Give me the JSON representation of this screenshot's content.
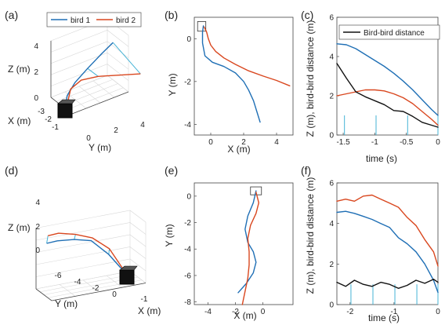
{
  "colors": {
    "bird1": "#1f6fb5",
    "bird2": "#d9471f",
    "distance": "#111111",
    "link": "#45b3d6",
    "grid": "#d8d8d8",
    "axis": "#444444"
  },
  "panels": {
    "a": {
      "label": "(a)",
      "legend": [
        "bird 1",
        "bird 2"
      ],
      "zlabel": "Z (m)",
      "xlabel": "X (m)",
      "ylabel": "Y (m)",
      "zticks": [
        "0",
        "2",
        "4"
      ],
      "xticks": [
        "-3",
        "-2",
        "-1"
      ],
      "yticks": [
        "0",
        "2",
        "4"
      ]
    },
    "b": {
      "label": "(b)",
      "xlabel": "X (m)",
      "ylabel": "Y (m)"
    },
    "c": {
      "label": "(c)",
      "legend": [
        "Bird-bird distance"
      ],
      "xlabel": "time (s)",
      "ylabel": "Z (m), bird-bird distance (m)"
    },
    "d": {
      "label": "(d)",
      "zlabel": "Z (m)",
      "xlabel": "X (m)",
      "ylabel": "Y (m)",
      "zticks": [
        "0",
        "2",
        "4"
      ],
      "xticks": [
        "-1"
      ],
      "yticks": [
        "-6",
        "-4",
        "-2",
        "0"
      ]
    },
    "e": {
      "label": "(e)",
      "xlabel": "X (m)",
      "ylabel": "Y (m)"
    },
    "f": {
      "label": "(f)",
      "xlabel": "time (s)",
      "ylabel": "Z (m), bird-bird distance (m)"
    }
  },
  "chart_data": [
    {
      "id": "a",
      "type": "line",
      "title": "",
      "projection": "3d",
      "series": [
        {
          "name": "bird 1",
          "x": [
            -1.0,
            -0.9,
            -0.6,
            -0.2,
            0.2,
            0.6
          ],
          "y": [
            0.0,
            0.1,
            0.5,
            1.2,
            2.0,
            2.6
          ],
          "z": [
            0.0,
            1.0,
            2.0,
            3.0,
            4.0,
            4.8
          ]
        },
        {
          "name": "bird 2",
          "x": [
            -1.0,
            -0.8,
            -0.3,
            0.5,
            1.5,
            2.5
          ],
          "y": [
            0.1,
            0.3,
            0.8,
            1.6,
            2.6,
            3.6
          ],
          "z": [
            0.0,
            1.5,
            2.2,
            2.5,
            2.6,
            2.7
          ]
        }
      ]
    },
    {
      "id": "b",
      "type": "line",
      "title": "",
      "xlim": [
        -1,
        5
      ],
      "ylim": [
        -4.5,
        1
      ],
      "xticks": [
        0,
        2,
        4
      ],
      "yticks": [
        -4,
        -2,
        0
      ],
      "box": {
        "x": [
          -0.8,
          -0.3
        ],
        "y": [
          0.35,
          0.8
        ]
      },
      "series": [
        {
          "name": "bird 1",
          "x": [
            -0.45,
            -0.5,
            -0.5,
            -0.35,
            0.1,
            0.8,
            1.5,
            2.0,
            2.3,
            2.6,
            2.8,
            3.0
          ],
          "y": [
            0.6,
            0.3,
            -0.2,
            -0.8,
            -1.1,
            -1.3,
            -1.6,
            -2.0,
            -2.4,
            -2.9,
            -3.4,
            -3.9
          ]
        },
        {
          "name": "bird 2",
          "x": [
            -0.4,
            -0.25,
            -0.15,
            0.0,
            0.3,
            0.8,
            1.5,
            2.3,
            3.2,
            4.0,
            4.8
          ],
          "y": [
            0.55,
            0.3,
            0.0,
            -0.3,
            -0.6,
            -0.9,
            -1.2,
            -1.5,
            -1.75,
            -1.95,
            -2.2
          ]
        }
      ]
    },
    {
      "id": "c",
      "type": "line",
      "title": "",
      "xlim": [
        -1.6,
        0
      ],
      "ylim": [
        0,
        6
      ],
      "xticks": [
        -1.5,
        -1,
        -0.5,
        0
      ],
      "yticks": [
        0,
        2,
        4,
        6
      ],
      "stems": [
        -1.48,
        -0.98,
        -0.48,
        0
      ],
      "series": [
        {
          "name": "bird 1",
          "x": [
            -1.6,
            -1.45,
            -1.3,
            -1.15,
            -1.0,
            -0.85,
            -0.7,
            -0.55,
            -0.4,
            -0.25,
            -0.1,
            0.0
          ],
          "y": [
            4.65,
            4.6,
            4.4,
            4.1,
            3.8,
            3.5,
            3.15,
            2.75,
            2.3,
            1.8,
            1.3,
            1.0
          ]
        },
        {
          "name": "bird 2",
          "x": [
            -1.6,
            -1.45,
            -1.3,
            -1.15,
            -1.0,
            -0.85,
            -0.7,
            -0.55,
            -0.4,
            -0.25,
            -0.1,
            0.0
          ],
          "y": [
            2.0,
            2.1,
            2.2,
            2.3,
            2.3,
            2.25,
            2.1,
            1.9,
            1.6,
            1.2,
            0.8,
            0.5
          ]
        },
        {
          "name": "Bird-bird distance",
          "x": [
            -1.6,
            -1.45,
            -1.3,
            -1.15,
            -1.0,
            -0.85,
            -0.7,
            -0.55,
            -0.4,
            -0.25,
            -0.1,
            0.0
          ],
          "y": [
            3.65,
            2.9,
            2.2,
            1.95,
            1.75,
            1.55,
            1.25,
            1.2,
            0.95,
            0.65,
            0.5,
            0.4
          ]
        }
      ]
    },
    {
      "id": "d",
      "type": "line",
      "title": "",
      "projection": "3d",
      "series": [
        {
          "name": "bird 1",
          "x": [
            -1.0,
            -0.9,
            -0.7,
            -0.4,
            -0.1,
            0.2
          ],
          "y": [
            0.0,
            -1.5,
            -3.0,
            -4.5,
            -6.0,
            -7.0
          ],
          "z": [
            0.0,
            2.0,
            3.5,
            4.0,
            4.3,
            4.4
          ]
        },
        {
          "name": "bird 2",
          "x": [
            -1.0,
            -0.8,
            -0.5,
            -0.2,
            0.1,
            0.4
          ],
          "y": [
            0.0,
            -1.5,
            -3.0,
            -4.5,
            -6.0,
            -7.0
          ],
          "z": [
            0.0,
            2.5,
            3.8,
            4.5,
            5.0,
            5.1
          ]
        }
      ]
    },
    {
      "id": "e",
      "type": "line",
      "title": "",
      "xlim": [
        -5,
        2.2
      ],
      "ylim": [
        -8.2,
        1
      ],
      "xticks": [
        -4,
        -2,
        0
      ],
      "yticks": [
        -8,
        -6,
        -4,
        -2,
        0
      ],
      "box": {
        "x": [
          -0.9,
          -0.1
        ],
        "y": [
          0.1,
          0.7
        ]
      },
      "series": [
        {
          "name": "bird 1",
          "x": [
            -0.5,
            -0.7,
            -1.1,
            -1.3,
            -1.1,
            -0.7,
            -0.5,
            -0.7,
            -1.2,
            -1.8
          ],
          "y": [
            0.4,
            -0.5,
            -1.5,
            -2.5,
            -3.5,
            -4.2,
            -5.0,
            -5.8,
            -6.6,
            -7.3
          ]
        },
        {
          "name": "bird 2",
          "x": [
            -0.5,
            -0.3,
            -0.5,
            -0.9,
            -1.1,
            -1.0,
            -1.0,
            -1.1,
            -1.3,
            -1.5
          ],
          "y": [
            0.3,
            -0.5,
            -1.3,
            -2.2,
            -3.2,
            -4.2,
            -5.2,
            -6.2,
            -7.2,
            -8.2
          ]
        }
      ]
    },
    {
      "id": "f",
      "type": "line",
      "title": "",
      "xlim": [
        -2.3,
        0
      ],
      "ylim": [
        0,
        6
      ],
      "xticks": [
        -2,
        -1,
        0
      ],
      "yticks": [
        0,
        2,
        4,
        6
      ],
      "stems": [
        -1.98,
        -1.48,
        -0.98,
        -0.48,
        0
      ],
      "series": [
        {
          "name": "bird 1",
          "x": [
            -2.3,
            -2.1,
            -1.9,
            -1.7,
            -1.5,
            -1.3,
            -1.1,
            -0.9,
            -0.7,
            -0.5,
            -0.3,
            -0.1,
            0.0
          ],
          "y": [
            4.55,
            4.6,
            4.5,
            4.35,
            4.2,
            4.0,
            3.8,
            3.3,
            3.0,
            2.6,
            2.0,
            1.2,
            0.6
          ]
        },
        {
          "name": "bird 2",
          "x": [
            -2.3,
            -2.1,
            -1.9,
            -1.7,
            -1.5,
            -1.3,
            -1.1,
            -0.9,
            -0.7,
            -0.5,
            -0.3,
            -0.1,
            0.0
          ],
          "y": [
            5.1,
            5.2,
            5.1,
            5.35,
            5.4,
            5.2,
            5.0,
            4.8,
            4.3,
            3.9,
            3.2,
            2.6,
            1.9
          ]
        },
        {
          "name": "Bird-bird distance",
          "x": [
            -2.3,
            -2.1,
            -1.9,
            -1.7,
            -1.5,
            -1.3,
            -1.1,
            -0.9,
            -0.7,
            -0.5,
            -0.3,
            -0.1,
            0.0
          ],
          "y": [
            1.1,
            0.9,
            1.2,
            1.0,
            0.9,
            1.1,
            1.0,
            0.8,
            0.95,
            1.2,
            1.05,
            1.25,
            1.1
          ]
        }
      ]
    }
  ]
}
